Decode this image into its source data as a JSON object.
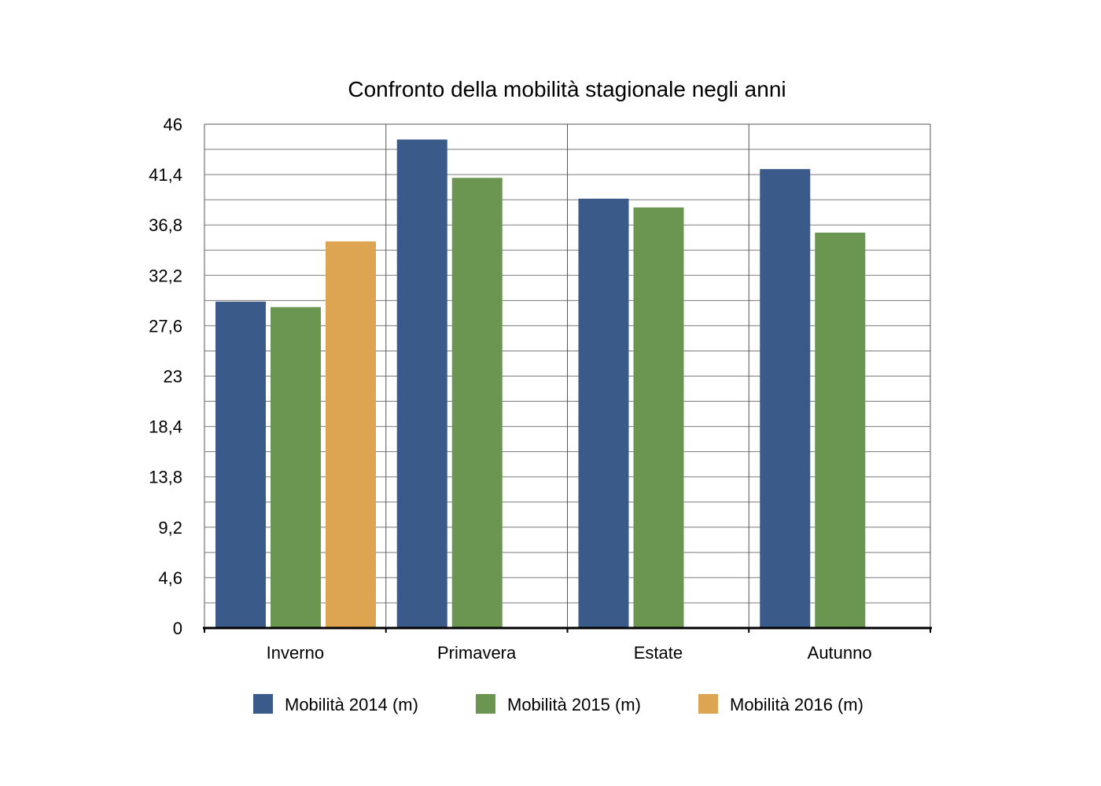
{
  "chart_data": {
    "type": "bar",
    "title": "Confronto della mobilità stagionale negli anni",
    "xlabel": "",
    "ylabel": "",
    "categories": [
      "Inverno",
      "Primavera",
      "Estate",
      "Autunno"
    ],
    "series": [
      {
        "name": "Mobilità 2014 (m)",
        "color": "#3a5a8a",
        "values": [
          29.8,
          44.6,
          39.2,
          41.9
        ]
      },
      {
        "name": "Mobilità 2015 (m)",
        "color": "#6a9652",
        "values": [
          29.3,
          41.1,
          38.4,
          36.1
        ]
      },
      {
        "name": "Mobilità 2016 (m)",
        "color": "#dda452",
        "values": [
          35.3,
          null,
          null,
          null
        ]
      }
    ],
    "ylim": [
      0,
      46
    ],
    "y_ticks": [
      "0",
      "4,6",
      "9,2",
      "13,8",
      "18,4",
      "23",
      "27,6",
      "32,2",
      "36,8",
      "41,4",
      "46"
    ],
    "grid": true,
    "legend_position": "bottom"
  }
}
